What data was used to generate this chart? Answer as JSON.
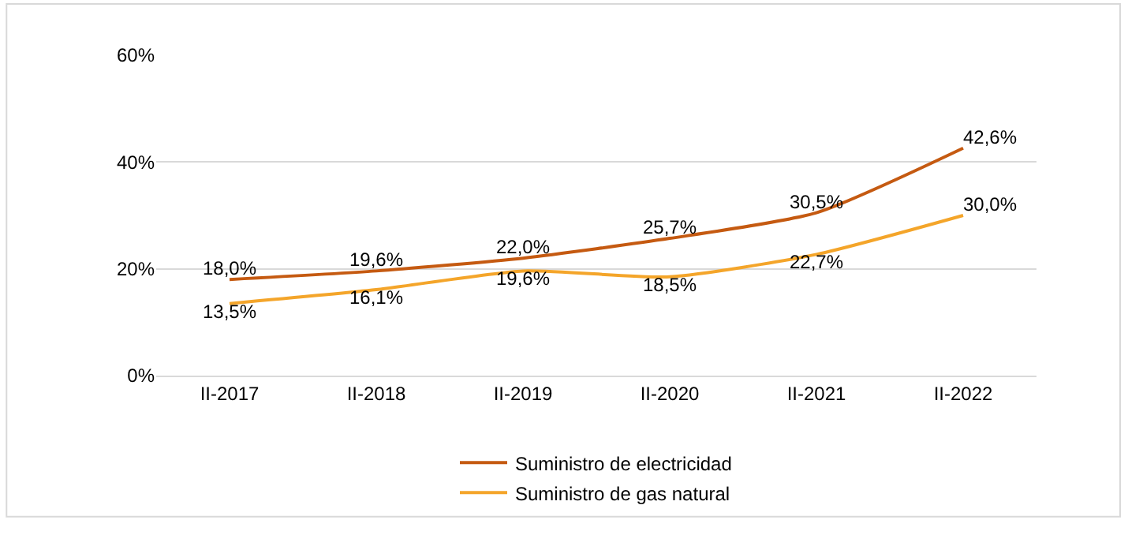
{
  "chart_data": {
    "type": "line",
    "categories": [
      "II-2017",
      "II-2018",
      "II-2019",
      "II-2020",
      "II-2021",
      "II-2022"
    ],
    "series": [
      {
        "name": "Suministro de electricidad",
        "color": "#c55a11",
        "values": [
          18.0,
          19.6,
          22.0,
          25.7,
          30.5,
          42.6
        ],
        "value_labels": [
          "18,0%",
          "19,6%",
          "22,0%",
          "25,7%",
          "30,5%",
          "42,6%"
        ]
      },
      {
        "name": "Suministro de gas natural",
        "color": "#f4a52a",
        "values": [
          13.5,
          16.1,
          19.6,
          18.5,
          22.7,
          30.0
        ],
        "value_labels": [
          "13,5%",
          "16,1%",
          "19,6%",
          "18,5%",
          "22,7%",
          "30,0%"
        ]
      }
    ],
    "ylim": [
      0,
      60
    ],
    "yticks": [
      {
        "value": 0,
        "label": "0%"
      },
      {
        "value": 20,
        "label": "20%"
      },
      {
        "value": 40,
        "label": "40%"
      },
      {
        "value": 60,
        "label": "60%"
      }
    ],
    "grid": "y",
    "legend": "bottom",
    "marker": "none",
    "line_style": "solid"
  }
}
